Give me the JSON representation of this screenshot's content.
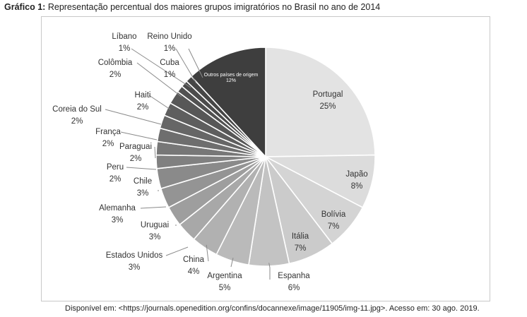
{
  "caption": {
    "prefix": "Gráfico 1:",
    "text": "Representação percentual dos maiores grupos imigratórios no Brasil no ano de 2014"
  },
  "source": "Disponível em: <https://journals.openedition.org/confins/docannexe/image/11905/img-11.jpg>. Acesso em: 30 ago. 2019.",
  "chart_data": {
    "type": "pie",
    "start": "12 o'clock, clockwise",
    "slices": [
      {
        "label": "Portugal",
        "value": 25,
        "display": "25%",
        "color": "#e3e3e3"
      },
      {
        "label": "Japão",
        "value": 8,
        "display": "8%",
        "color": "#dcdcdc"
      },
      {
        "label": "Bolívia",
        "value": 7,
        "display": "7%",
        "color": "#d4d4d4"
      },
      {
        "label": "Itália",
        "value": 7,
        "display": "7%",
        "color": "#cbcbcb"
      },
      {
        "label": "Espanha",
        "value": 6,
        "display": "6%",
        "color": "#c3c3c3"
      },
      {
        "label": "Argentina",
        "value": 5,
        "display": "5%",
        "color": "#bababa"
      },
      {
        "label": "China",
        "value": 4,
        "display": "4%",
        "color": "#b1b1b1"
      },
      {
        "label": "Estados Unidos",
        "value": 3,
        "display": "3%",
        "color": "#a8a8a8"
      },
      {
        "label": "Uruguai",
        "value": 3,
        "display": "3%",
        "color": "#9e9e9e"
      },
      {
        "label": "Alemanha",
        "value": 3,
        "display": "3%",
        "color": "#949494"
      },
      {
        "label": "Chile",
        "value": 3,
        "display": "3%",
        "color": "#8a8a8a"
      },
      {
        "label": "Peru",
        "value": 2,
        "display": "2%",
        "color": "#808080"
      },
      {
        "label": "Paraguai",
        "value": 2,
        "display": "2%",
        "color": "#777777"
      },
      {
        "label": "França",
        "value": 2,
        "display": "2%",
        "color": "#6e6e6e"
      },
      {
        "label": "Coreia do Sul",
        "value": 2,
        "display": "2%",
        "color": "#666666"
      },
      {
        "label": "Haiti",
        "value": 2,
        "display": "2%",
        "color": "#5e5e5e"
      },
      {
        "label": "Colômbia",
        "value": 2,
        "display": "2%",
        "color": "#575757"
      },
      {
        "label": "Líbano",
        "value": 1,
        "display": "1%",
        "color": "#515151"
      },
      {
        "label": "Reino Unido",
        "value": 1,
        "display": "1%",
        "color": "#4b4b4b"
      },
      {
        "label": "Cuba",
        "value": 1,
        "display": "1%",
        "color": "#464646"
      },
      {
        "label": "Outros países de origem",
        "value": 12,
        "display": "12%",
        "color": "#3e3e3e"
      }
    ]
  }
}
